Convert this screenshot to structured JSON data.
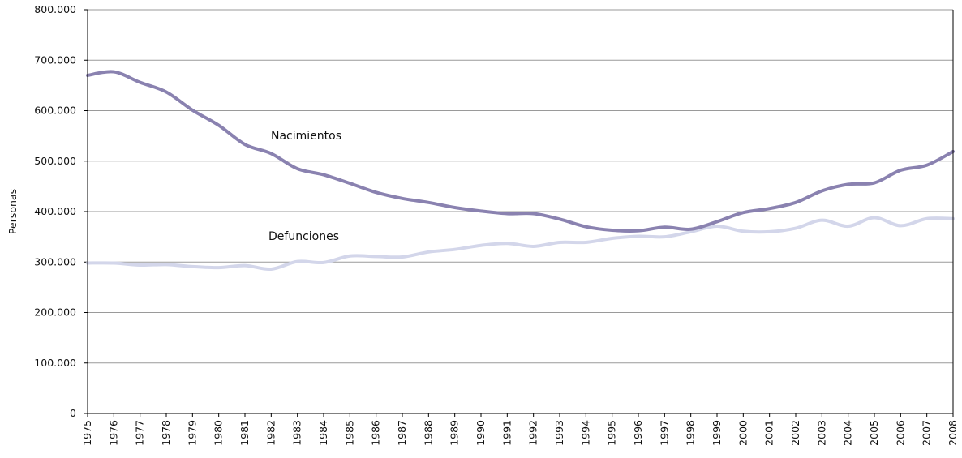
{
  "chart_data": {
    "type": "line",
    "ylabel": "Personas",
    "ylim": [
      0,
      800000
    ],
    "yticks": [
      0,
      100000,
      200000,
      300000,
      400000,
      500000,
      600000,
      700000,
      800000
    ],
    "ytick_labels": [
      "0",
      "100.000",
      "200.000",
      "300.000",
      "400.000",
      "500.000",
      "600.000",
      "700.000",
      "800.000"
    ],
    "grid": "horizontal",
    "x": [
      1975,
      1976,
      1977,
      1978,
      1979,
      1980,
      1981,
      1982,
      1983,
      1984,
      1985,
      1986,
      1987,
      1988,
      1989,
      1990,
      1991,
      1992,
      1993,
      1994,
      1995,
      1996,
      1997,
      1998,
      1999,
      2000,
      2001,
      2002,
      2003,
      2004,
      2005,
      2006,
      2007,
      2008
    ],
    "series": [
      {
        "name": "Nacimientos",
        "color": "#8a82b0",
        "values": [
          670000,
          677000,
          656000,
          637000,
          601000,
          571000,
          533000,
          515000,
          485000,
          473000,
          456000,
          438000,
          426000,
          418000,
          408000,
          401000,
          396000,
          396000,
          385000,
          370000,
          363000,
          362000,
          369000,
          365000,
          380000,
          398000,
          406000,
          418000,
          441000,
          454000,
          457000,
          482000,
          492000,
          519000
        ]
      },
      {
        "name": "Defunciones",
        "color": "#d3d6ea",
        "values": [
          298000,
          298000,
          294000,
          295000,
          291000,
          289000,
          293000,
          286000,
          301000,
          299000,
          312000,
          311000,
          310000,
          320000,
          325000,
          333000,
          337000,
          331000,
          339000,
          339000,
          347000,
          351000,
          350000,
          360000,
          371000,
          361000,
          360000,
          367000,
          383000,
          371000,
          388000,
          372000,
          386000,
          386000
        ]
      }
    ],
    "annotations": [
      "Nacimientos",
      "Defunciones"
    ]
  }
}
